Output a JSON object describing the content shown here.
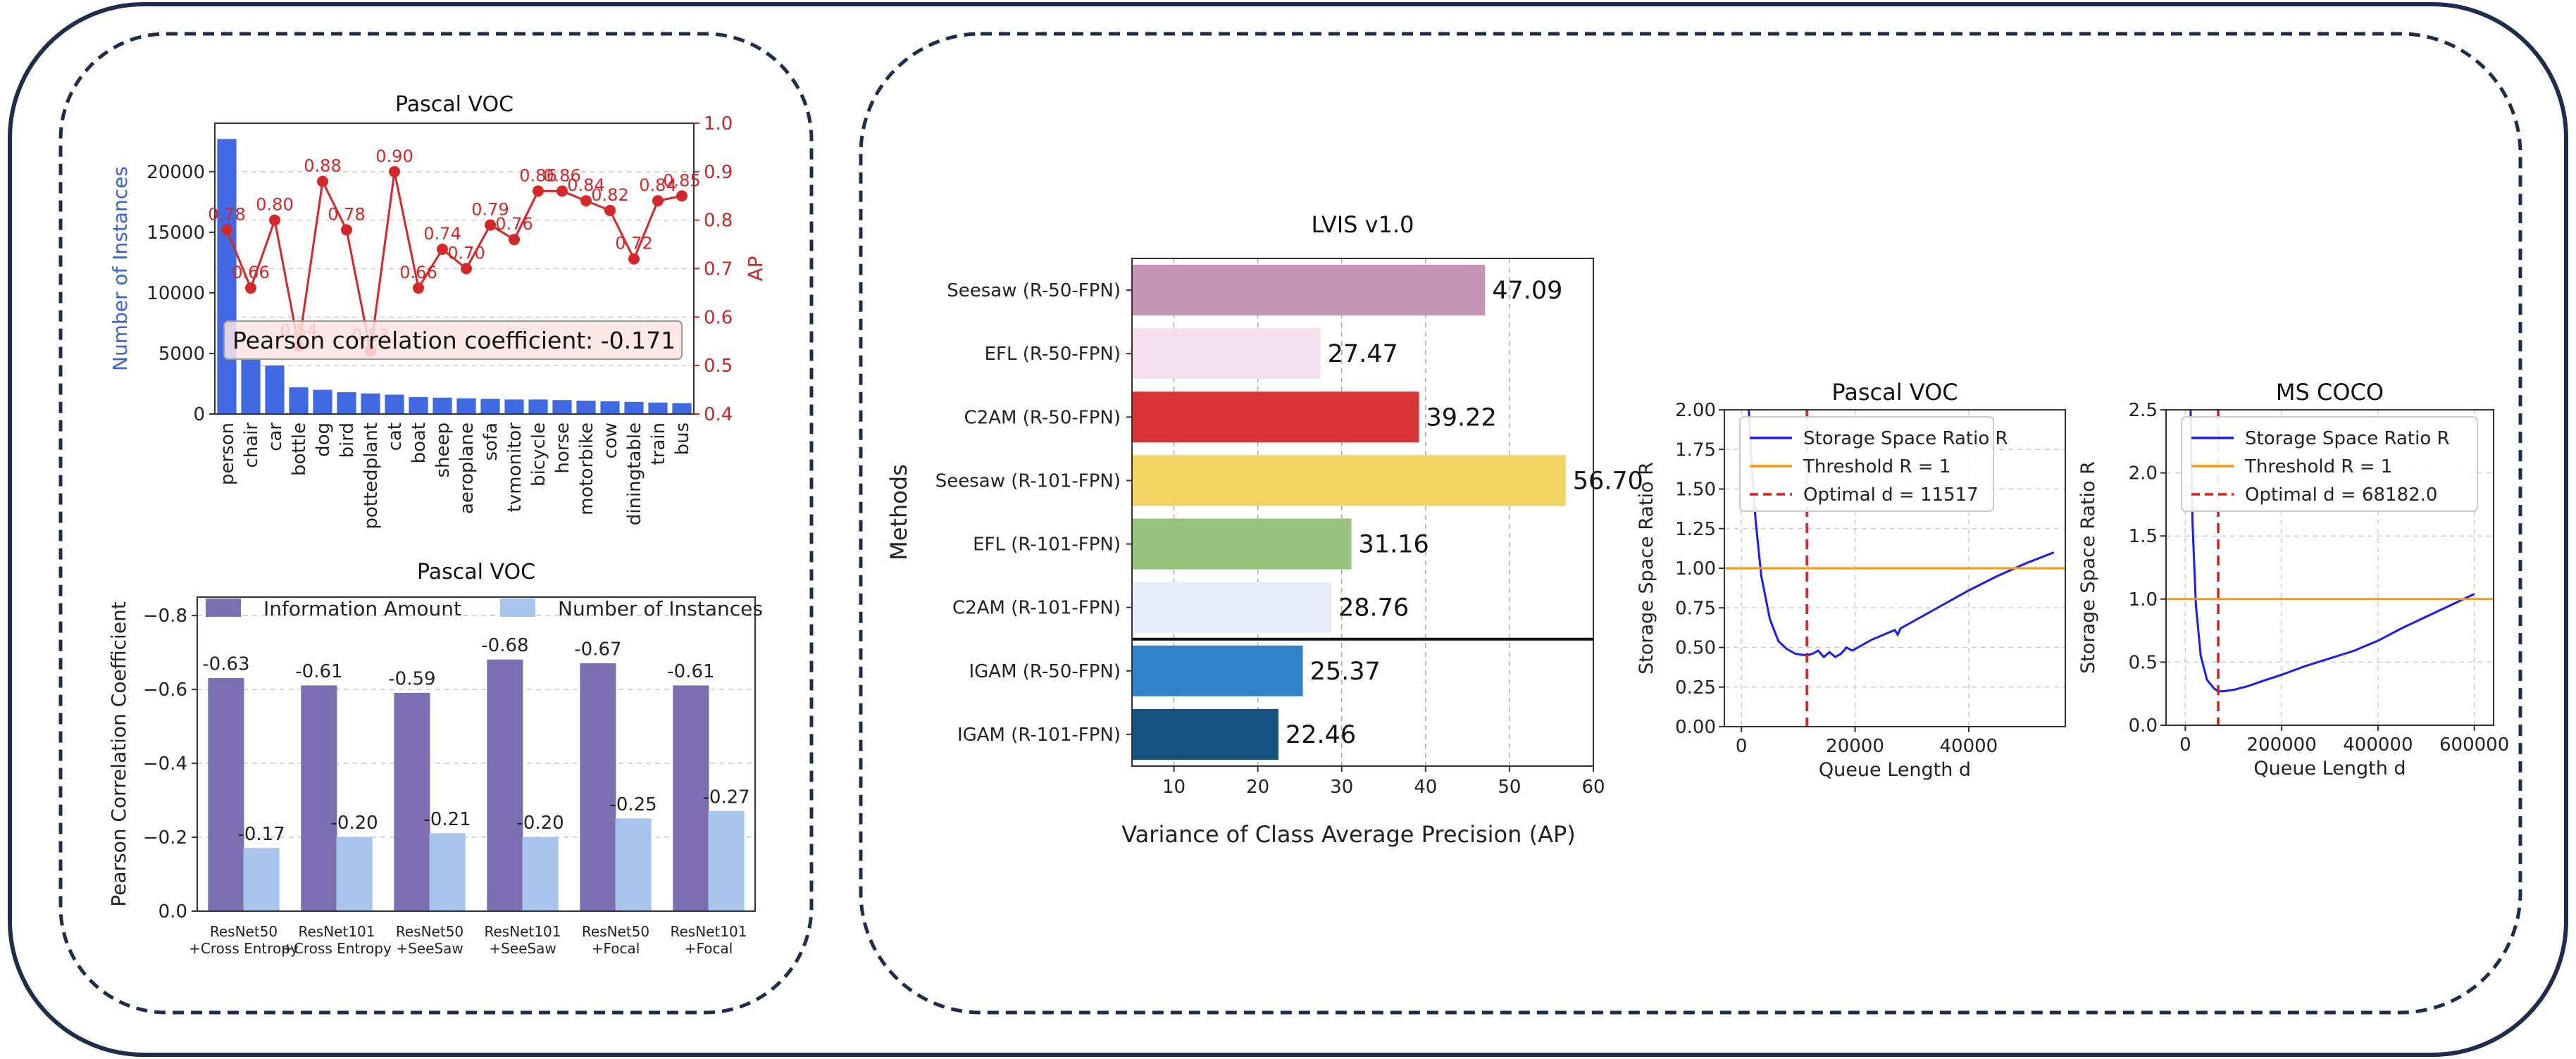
{
  "colors": {
    "frame": "#1f2d4d",
    "voc_bar": "#4169e1",
    "voc_line": "#d62728",
    "info_bar": "#7b6fb2",
    "inst_bar": "#a9c4ec",
    "ratio_line": "#1a1aff",
    "threshold_line": "#ff9900",
    "optimal_line": "#e61919"
  },
  "chart_data": [
    {
      "id": "voc_instances",
      "type": "bar",
      "title": "Pascal VOC",
      "ylabel": "Number of Instances",
      "y2label": "AP",
      "ylim": [
        0,
        24000
      ],
      "y2lim": [
        0.4,
        1.0
      ],
      "yticks": [
        0,
        5000,
        10000,
        15000,
        20000
      ],
      "y2ticks": [
        "0.4",
        "0.5",
        "0.6",
        "0.7",
        "0.8",
        "0.9",
        "1.0"
      ],
      "categories": [
        "person",
        "chair",
        "car",
        "bottle",
        "dog",
        "bird",
        "pottedplant",
        "cat",
        "boat",
        "sheep",
        "aeroplane",
        "sofa",
        "tvmonitor",
        "bicycle",
        "horse",
        "motorbike",
        "cow",
        "diningtable",
        "train",
        "bus"
      ],
      "instances": [
        22700,
        4600,
        4000,
        2200,
        2000,
        1800,
        1700,
        1600,
        1400,
        1350,
        1300,
        1250,
        1200,
        1200,
        1150,
        1100,
        1050,
        1000,
        950,
        900
      ],
      "ap": [
        0.78,
        0.66,
        0.8,
        0.54,
        0.88,
        0.78,
        0.53,
        0.9,
        0.66,
        0.74,
        0.7,
        0.79,
        0.76,
        0.86,
        0.86,
        0.84,
        0.82,
        0.72,
        0.84,
        0.85
      ],
      "ap_labels": [
        "0.78",
        "0.66",
        "0.80",
        "0.54",
        "0.88",
        "0.78",
        "0.53",
        "0.90",
        "0.66",
        "0.74",
        "0.70",
        "0.79",
        "0.76",
        "0.86",
        "0.86",
        "0.84",
        "0.82",
        "0.72",
        "0.84",
        "0.85"
      ],
      "annotation": "Pearson correlation coefficient: -0.171",
      "grid": true
    },
    {
      "id": "voc_pearson",
      "type": "bar",
      "title": "Pascal VOC",
      "ylabel": "Pearson Correlation Coefficient",
      "ylim": [
        0,
        -0.85
      ],
      "yticks": [
        "0.0",
        "−0.2",
        "−0.4",
        "−0.6",
        "−0.8"
      ],
      "ytick_values": [
        0,
        -0.2,
        -0.4,
        -0.6,
        -0.8
      ],
      "categories": [
        [
          "ResNet50",
          "+Cross Entropy"
        ],
        [
          "ResNet101",
          "+Cross Entropy"
        ],
        [
          "ResNet50",
          "+SeeSaw"
        ],
        [
          "ResNet101",
          "+SeeSaw"
        ],
        [
          "ResNet50",
          "+Focal"
        ],
        [
          "ResNet101",
          "+Focal"
        ]
      ],
      "legend": [
        "Information Amount",
        "Number of Instances"
      ],
      "series": [
        {
          "name": "Information Amount",
          "values": [
            -0.63,
            -0.61,
            -0.59,
            -0.68,
            -0.67,
            -0.61
          ],
          "labels": [
            "-0.63",
            "-0.61",
            "-0.59",
            "-0.68",
            "-0.67",
            "-0.61"
          ]
        },
        {
          "name": "Number of Instances",
          "values": [
            -0.17,
            -0.2,
            -0.21,
            -0.2,
            -0.25,
            -0.27
          ],
          "labels": [
            "-0.17",
            "-0.20",
            "-0.21",
            "-0.20",
            "-0.25",
            "-0.27"
          ]
        }
      ],
      "grid": true
    },
    {
      "id": "lvis",
      "type": "bar",
      "orientation": "horizontal",
      "title": "LVIS v1.0",
      "xlabel": "Variance of Class Average Precision (AP)",
      "ylabel": "Methods",
      "xlim": [
        5,
        60
      ],
      "xticks": [
        10,
        20,
        30,
        40,
        50,
        60
      ],
      "categories": [
        "Seesaw (R-50-FPN)",
        "EFL (R-50-FPN)",
        "C2AM (R-50-FPN)",
        "Seesaw (R-101-FPN)",
        "EFL (R-101-FPN)",
        "C2AM (R-101-FPN)",
        "IGAM (R-50-FPN)",
        "IGAM (R-101-FPN)"
      ],
      "values": [
        47.09,
        27.47,
        39.22,
        56.7,
        31.16,
        28.76,
        25.37,
        22.46
      ],
      "value_labels": [
        "47.09",
        "27.47",
        "39.22",
        "56.70",
        "31.16",
        "28.76",
        "25.37",
        "22.46"
      ],
      "bar_colors": [
        "#c496b4",
        "#f5dfec",
        "#d93537",
        "#f2d462",
        "#96c47c",
        "#e8eef9",
        "#3182c8",
        "#14517f"
      ],
      "grid": true
    },
    {
      "id": "ratio_voc",
      "type": "line",
      "title": "Pascal VOC",
      "xlabel": "Queue Length d",
      "ylabel": "Storage Space Ratio R",
      "xlim": [
        -3000,
        57000
      ],
      "ylim": [
        0,
        2.0
      ],
      "xticks": [
        0,
        20000,
        40000
      ],
      "xtick_labels": [
        "0",
        "20000",
        "40000"
      ],
      "yticks": [
        0,
        0.25,
        0.5,
        0.75,
        1.0,
        1.25,
        1.5,
        1.75,
        2.0
      ],
      "ytick_labels": [
        "0.00",
        "0.25",
        "0.50",
        "0.75",
        "1.00",
        "1.25",
        "1.50",
        "1.75",
        "2.00"
      ],
      "legend": [
        "Storage Space Ratio R",
        "Threshold R = 1",
        "Optimal d = 11517"
      ],
      "series": [
        {
          "name": "Storage Space Ratio R",
          "x": [
            1300,
            1800,
            2500,
            3500,
            5000,
            6500,
            8000,
            9500,
            10500,
            11517,
            12500,
            13500,
            14500,
            15500,
            16500,
            17500,
            18500,
            19500,
            21000,
            23000,
            25000,
            27000,
            27500,
            28000,
            30000,
            35000,
            40000,
            45000,
            50000,
            55000
          ],
          "y": [
            2.0,
            1.65,
            1.3,
            0.95,
            0.68,
            0.54,
            0.49,
            0.46,
            0.455,
            0.45,
            0.46,
            0.48,
            0.44,
            0.47,
            0.44,
            0.46,
            0.5,
            0.48,
            0.51,
            0.55,
            0.58,
            0.61,
            0.58,
            0.62,
            0.66,
            0.76,
            0.86,
            0.95,
            1.03,
            1.1
          ]
        },
        {
          "name": "Threshold R = 1",
          "y": 1.0
        },
        {
          "name": "Optimal d = 11517",
          "x": 11517
        }
      ],
      "grid": true
    },
    {
      "id": "ratio_coco",
      "type": "line",
      "title": "MS COCO",
      "xlabel": "Queue Length d",
      "ylabel": "Storage Space Ratio R",
      "xlim": [
        -40000,
        640000
      ],
      "ylim": [
        0,
        2.5
      ],
      "xticks": [
        0,
        200000,
        400000,
        600000
      ],
      "xtick_labels": [
        "0",
        "200000",
        "400000",
        "600000"
      ],
      "yticks": [
        0,
        0.5,
        1.0,
        1.5,
        2.0,
        2.5
      ],
      "ytick_labels": [
        "0.0",
        "0.5",
        "1.0",
        "1.5",
        "2.0",
        "2.5"
      ],
      "legend": [
        "Storage Space Ratio R",
        "Threshold R = 1",
        "Optimal d = 68182.0"
      ],
      "series": [
        {
          "name": "Storage Space Ratio R",
          "x": [
            11000,
            15000,
            22000,
            32000,
            45000,
            60000,
            68182,
            80000,
            100000,
            130000,
            160000,
            200000,
            250000,
            300000,
            350000,
            400000,
            450000,
            500000,
            550000,
            600000
          ],
          "y": [
            2.5,
            1.6,
            0.95,
            0.55,
            0.36,
            0.29,
            0.27,
            0.27,
            0.28,
            0.31,
            0.35,
            0.4,
            0.47,
            0.53,
            0.59,
            0.67,
            0.77,
            0.86,
            0.95,
            1.04
          ]
        },
        {
          "name": "Threshold R = 1",
          "y": 1.0
        },
        {
          "name": "Optimal d = 68182.0",
          "x": 68182
        }
      ],
      "grid": true
    }
  ]
}
